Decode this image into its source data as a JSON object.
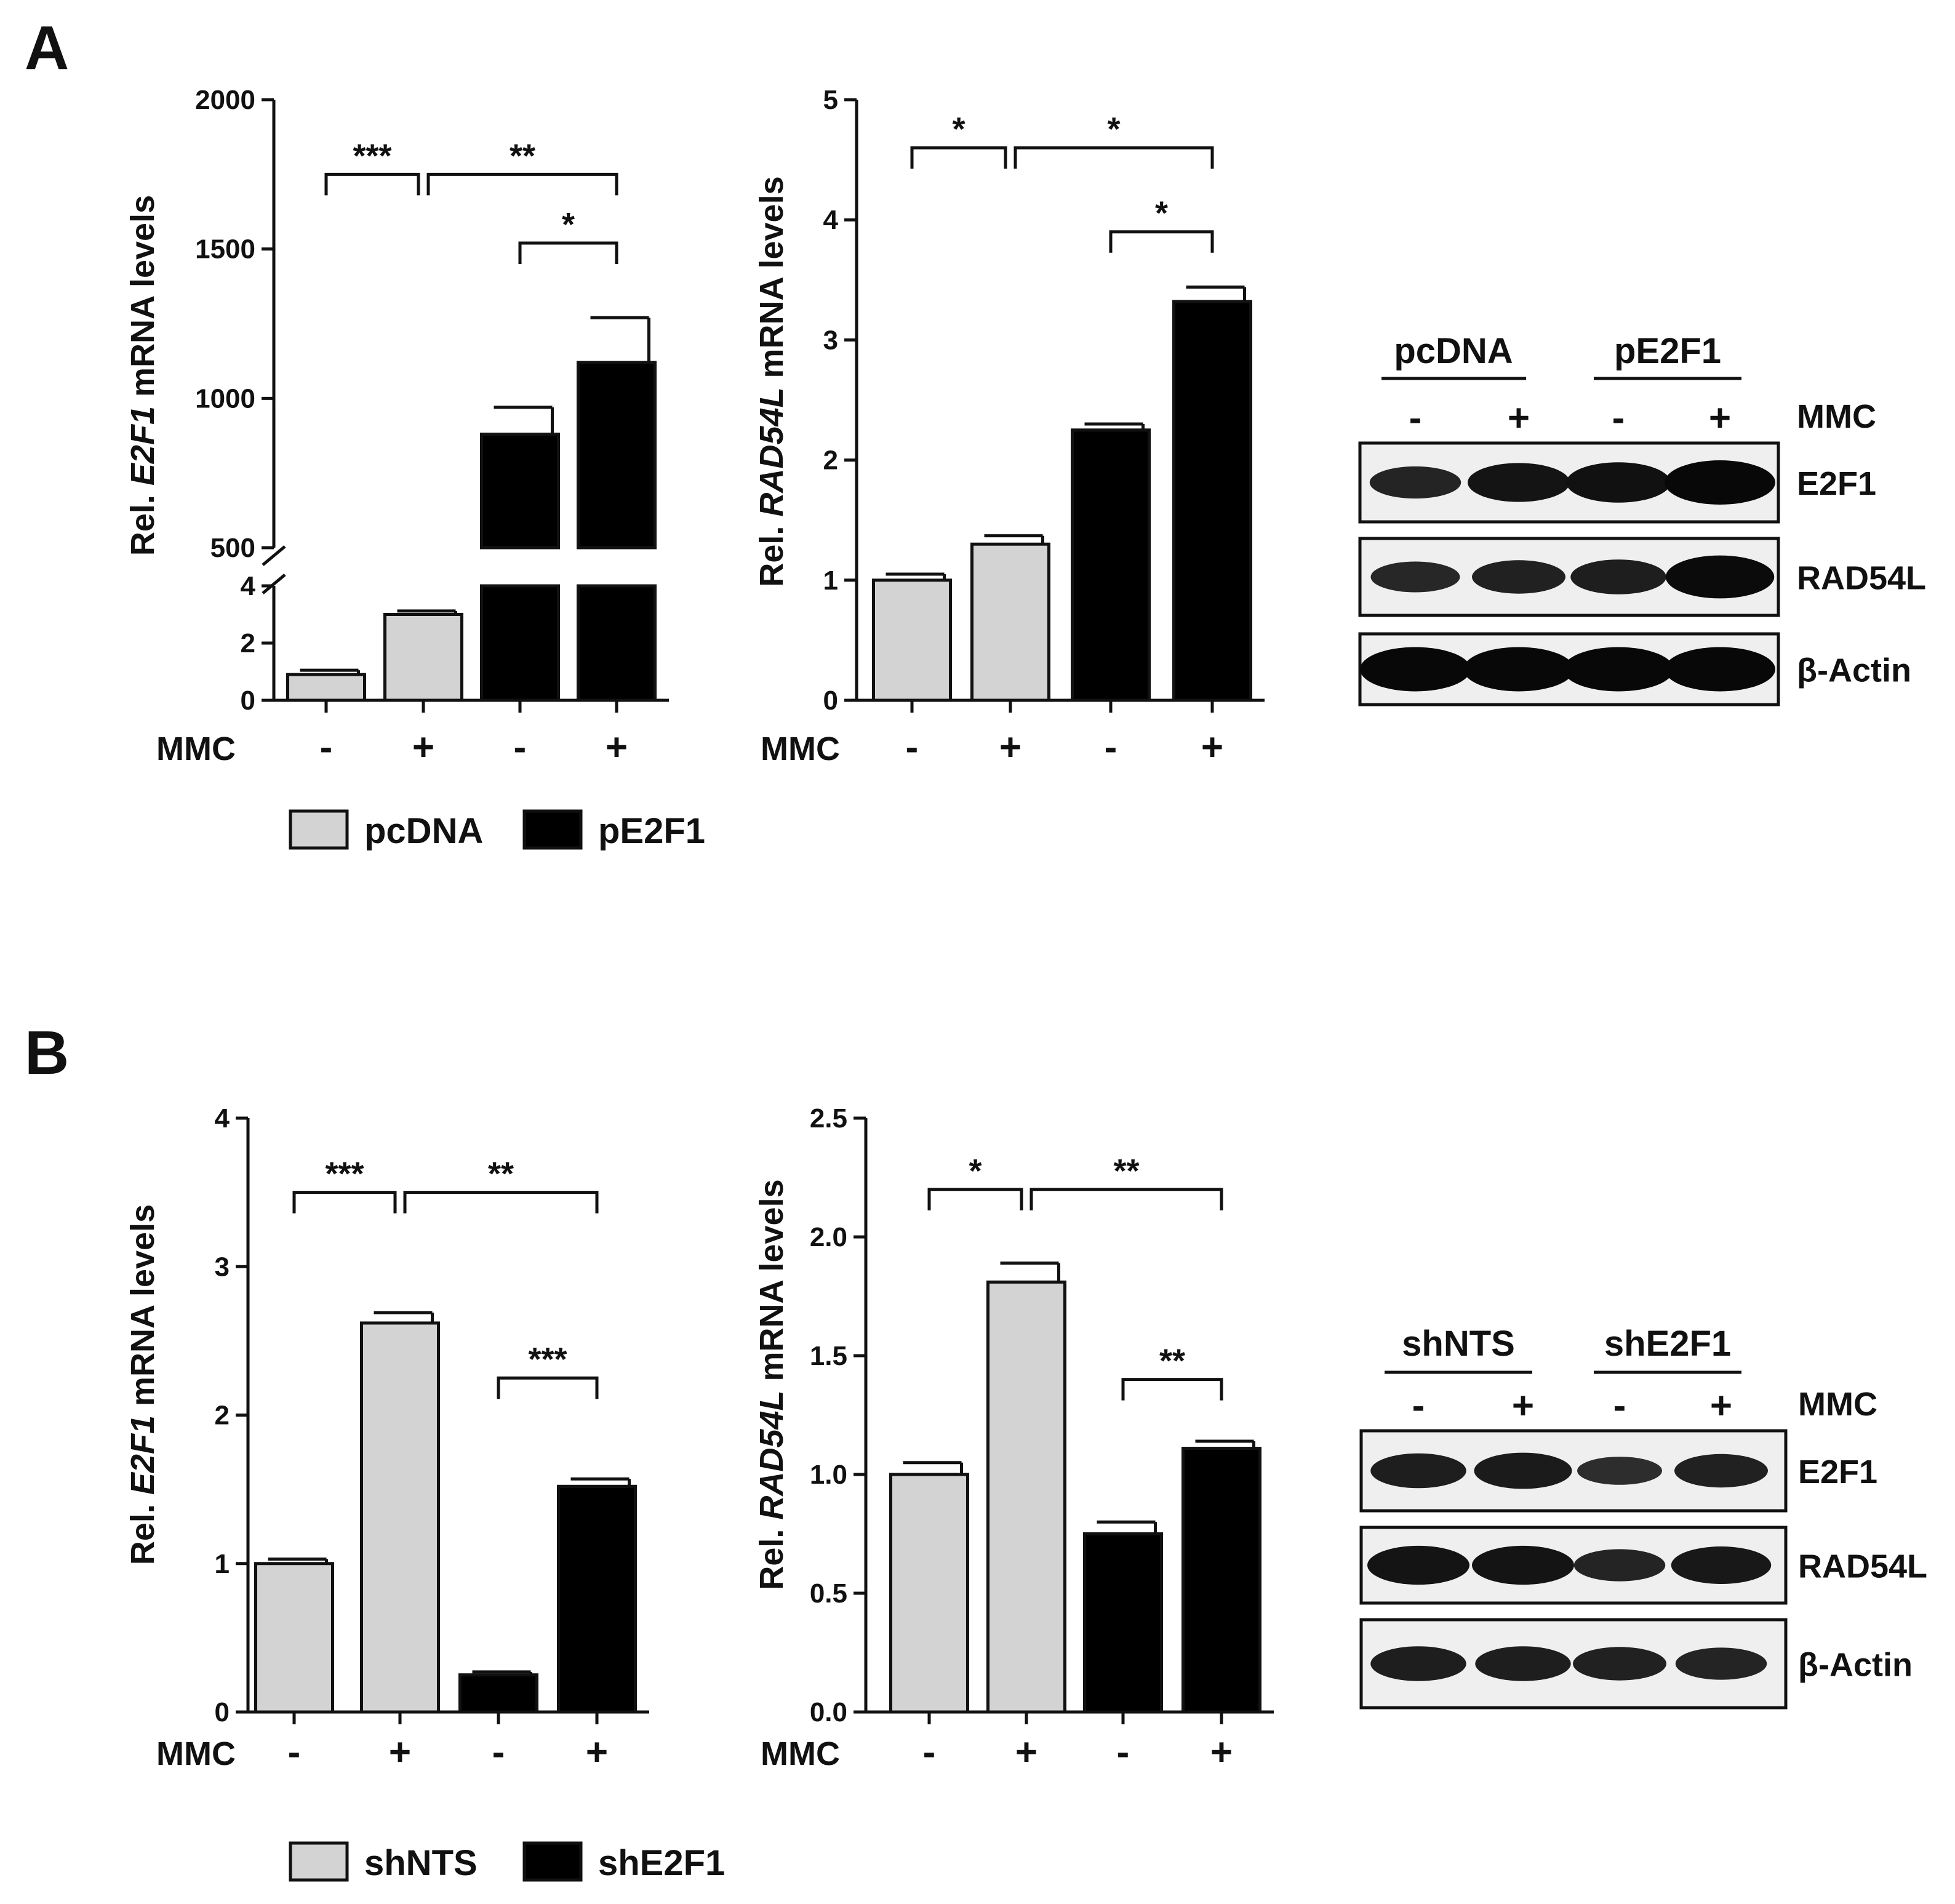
{
  "panel_letters": [
    "A",
    "B"
  ],
  "chart_data": [
    {
      "type": "bar",
      "panel": "A",
      "ylabel_prefix": "Rel. ",
      "ylabel_gene": "E2F1",
      "ylabel_suffix": " mRNA levels",
      "axis_break": true,
      "ylim_lower": [
        0,
        4
      ],
      "ylim_upper": [
        500,
        2000
      ],
      "yticks_lower": [
        "0",
        "2",
        "4"
      ],
      "yticks_upper": [
        "500",
        "1000",
        "1500",
        "2000"
      ],
      "xlabel": "MMC",
      "treatment": [
        "-",
        "+",
        "-",
        "+"
      ],
      "groups": [
        "pcDNA",
        "pcDNA",
        "pE2F1",
        "pE2F1"
      ],
      "values": [
        0.9,
        3.0,
        880,
        1120
      ],
      "errors": [
        0.15,
        0.12,
        90,
        150
      ],
      "significance": [
        {
          "from": 0,
          "to": 1,
          "label": "***",
          "level": 1750
        },
        {
          "from": 1,
          "to": 3,
          "label": "**",
          "level": 1750
        },
        {
          "from": 2,
          "to": 3,
          "label": "*",
          "level": 1520
        }
      ]
    },
    {
      "type": "bar",
      "panel": "A",
      "ylabel_prefix": "Rel. ",
      "ylabel_gene": "RAD54L",
      "ylabel_suffix": " mRNA levels",
      "ylim": [
        0,
        5
      ],
      "yticks": [
        "0",
        "1",
        "2",
        "3",
        "4",
        "5"
      ],
      "xlabel": "MMC",
      "treatment": [
        "-",
        "+",
        "-",
        "+"
      ],
      "groups": [
        "pcDNA",
        "pcDNA",
        "pE2F1",
        "pE2F1"
      ],
      "values": [
        1.0,
        1.3,
        2.25,
        3.32
      ],
      "errors": [
        0.05,
        0.07,
        0.05,
        0.12
      ],
      "significance": [
        {
          "from": 0,
          "to": 1,
          "label": "*",
          "level": 4.6
        },
        {
          "from": 1,
          "to": 3,
          "label": "*",
          "level": 4.6
        },
        {
          "from": 2,
          "to": 3,
          "label": "*",
          "level": 3.9
        }
      ]
    },
    {
      "type": "bar",
      "panel": "B",
      "ylabel_prefix": "Rel. ",
      "ylabel_gene": "E2F1",
      "ylabel_suffix": " mRNA levels",
      "ylim": [
        0,
        4
      ],
      "yticks": [
        "0",
        "1",
        "2",
        "3",
        "4"
      ],
      "xlabel": "MMC",
      "treatment": [
        "-",
        "+",
        "-",
        "+"
      ],
      "groups": [
        "shNTS",
        "shNTS",
        "shE2F1",
        "shE2F1"
      ],
      "values": [
        1.0,
        2.62,
        0.25,
        1.52
      ],
      "errors": [
        0.03,
        0.07,
        0.02,
        0.05
      ],
      "significance": [
        {
          "from": 0,
          "to": 1,
          "label": "***",
          "level": 3.5
        },
        {
          "from": 1,
          "to": 3,
          "label": "**",
          "level": 3.5
        },
        {
          "from": 2,
          "to": 3,
          "label": "***",
          "level": 2.25
        }
      ]
    },
    {
      "type": "bar",
      "panel": "B",
      "ylabel_prefix": "Rel. ",
      "ylabel_gene": "RAD54L",
      "ylabel_suffix": " mRNA levels",
      "ylim": [
        0,
        2.5
      ],
      "yticks": [
        "0.0",
        "0.5",
        "1.0",
        "1.5",
        "2.0",
        "2.5"
      ],
      "xlabel": "MMC",
      "treatment": [
        "-",
        "+",
        "-",
        "+"
      ],
      "groups": [
        "shNTS",
        "shNTS",
        "shE2F1",
        "shE2F1"
      ],
      "values": [
        1.0,
        1.81,
        0.75,
        1.11
      ],
      "errors": [
        0.05,
        0.08,
        0.05,
        0.03
      ],
      "significance": [
        {
          "from": 0,
          "to": 1,
          "label": "*",
          "level": 2.2
        },
        {
          "from": 1,
          "to": 3,
          "label": "**",
          "level": 2.2
        },
        {
          "from": 2,
          "to": 3,
          "label": "**",
          "level": 1.4
        }
      ]
    }
  ],
  "legends": [
    {
      "panel": "A",
      "entries": [
        {
          "name": "pcDNA",
          "color": "#d3d3d3"
        },
        {
          "name": "pE2F1",
          "color": "#000000"
        }
      ]
    },
    {
      "panel": "B",
      "entries": [
        {
          "name": "shNTS",
          "color": "#d3d3d3"
        },
        {
          "name": "shE2F1",
          "color": "#000000"
        }
      ]
    }
  ],
  "blots": [
    {
      "panel": "A",
      "groups": [
        "pcDNA",
        "pE2F1"
      ],
      "treatment_label": "MMC",
      "lanes": [
        "-",
        "+",
        "-",
        "+"
      ],
      "rows": [
        {
          "label": "E2F1",
          "intensity": [
            0.55,
            0.8,
            0.85,
            1.0
          ]
        },
        {
          "label": "RAD54L",
          "intensity": [
            0.5,
            0.6,
            0.65,
            0.95
          ]
        },
        {
          "label": "β-Actin",
          "intensity": [
            1.0,
            1.0,
            1.0,
            1.0
          ]
        }
      ]
    },
    {
      "panel": "B",
      "groups": [
        "shNTS",
        "shE2F1"
      ],
      "treatment_label": "MMC",
      "lanes": [
        "-",
        "+",
        "-",
        "+"
      ],
      "rows": [
        {
          "label": "E2F1",
          "intensity": [
            0.65,
            0.7,
            0.4,
            0.6
          ]
        },
        {
          "label": "RAD54L",
          "intensity": [
            0.8,
            0.8,
            0.55,
            0.75
          ]
        },
        {
          "label": "β-Actin",
          "intensity": [
            0.65,
            0.65,
            0.6,
            0.55
          ]
        }
      ]
    }
  ],
  "colors": {
    "pcdna_bar": "#d3d3d3",
    "pe2f1_bar": "#000000",
    "axis": "#111111"
  }
}
